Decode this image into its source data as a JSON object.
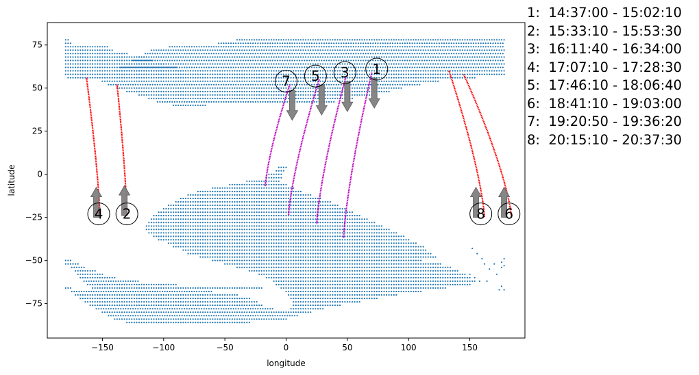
{
  "chart_data": {
    "type": "scatter",
    "title": "",
    "xlabel": "longitude",
    "ylabel": "latitude",
    "xlim": [
      -195,
      195
    ],
    "ylim": [
      -95,
      88
    ],
    "xticks": [
      -150,
      -100,
      -50,
      0,
      50,
      100,
      150
    ],
    "yticks": [
      -75,
      -50,
      -25,
      0,
      25,
      50,
      75
    ],
    "grid": false,
    "colors": {
      "coverage": "#1f77b4",
      "descending_track": "#ff0000",
      "ascending_track": "#bf00bf",
      "arrow": "#808080"
    },
    "coverage_grid_spacing_deg": 2,
    "coverage_regions": [
      {
        "name": "north",
        "bands": [
          [
            78,
            -180,
            -177
          ],
          [
            78,
            -40,
            178
          ],
          [
            76,
            -180,
            -175
          ],
          [
            76,
            -55,
            178
          ],
          [
            74,
            -180,
            -145
          ],
          [
            74,
            -95,
            178
          ],
          [
            72,
            -180,
            -142
          ],
          [
            72,
            -110,
            178
          ],
          [
            70,
            -180,
            -130
          ],
          [
            70,
            -115,
            178
          ],
          [
            68,
            -180,
            -115
          ],
          [
            68,
            -120,
            178
          ],
          [
            66,
            -180,
            -110
          ],
          [
            66,
            -125,
            178
          ],
          [
            64,
            -180,
            -100
          ],
          [
            64,
            -130,
            178
          ],
          [
            62,
            -180,
            -90
          ],
          [
            62,
            -135,
            178
          ],
          [
            60,
            -180,
            -85
          ],
          [
            60,
            -140,
            178
          ],
          [
            58,
            -180,
            178
          ],
          [
            56,
            -178,
            155
          ],
          [
            54,
            -150,
            125
          ],
          [
            52,
            -145,
            110
          ],
          [
            50,
            -138,
            95
          ],
          [
            48,
            -130,
            85
          ],
          [
            46,
            -120,
            70
          ],
          [
            44,
            -112,
            55
          ],
          [
            42,
            -105,
            40
          ],
          [
            40,
            -92,
            -65
          ]
        ]
      },
      {
        "name": "south",
        "bands": [
          [
            4,
            -6,
            0
          ],
          [
            2,
            -8,
            -2
          ],
          [
            0,
            -14,
            -4
          ],
          [
            -2,
            -16,
            -4
          ],
          [
            -4,
            -32,
            -6
          ],
          [
            -6,
            -46,
            0
          ],
          [
            -8,
            -60,
            6
          ],
          [
            -10,
            -72,
            12
          ],
          [
            -12,
            -80,
            20
          ],
          [
            -14,
            -86,
            28
          ],
          [
            -16,
            -90,
            36
          ],
          [
            -18,
            -96,
            42
          ],
          [
            -20,
            -100,
            48
          ],
          [
            -22,
            -104,
            54
          ],
          [
            -24,
            -108,
            60
          ],
          [
            -26,
            -110,
            66
          ],
          [
            -28,
            -112,
            72
          ],
          [
            -30,
            -114,
            78
          ],
          [
            -32,
            -114,
            84
          ],
          [
            -34,
            -112,
            90
          ],
          [
            -36,
            -108,
            96
          ],
          [
            -38,
            -104,
            100
          ],
          [
            -40,
            -96,
            106
          ],
          [
            -42,
            -92,
            112
          ],
          [
            -44,
            -84,
            114
          ],
          [
            -46,
            -80,
            118
          ],
          [
            -48,
            -70,
            122
          ],
          [
            -50,
            -180,
            -175
          ],
          [
            -50,
            -60,
            110
          ],
          [
            -52,
            -180,
            -170
          ],
          [
            -52,
            -50,
            126
          ],
          [
            -54,
            -175,
            -165
          ],
          [
            -54,
            -40,
            135
          ],
          [
            -56,
            -172,
            -155
          ],
          [
            -56,
            -30,
            140
          ],
          [
            -58,
            -170,
            -150
          ],
          [
            -58,
            -22,
            145
          ],
          [
            -60,
            -168,
            -140
          ],
          [
            -60,
            -16,
            150
          ],
          [
            -62,
            -165,
            -120
          ],
          [
            -62,
            -10,
            155
          ],
          [
            -64,
            -162,
            -90
          ],
          [
            -64,
            -8,
            150
          ],
          [
            -66,
            -180,
            -175
          ],
          [
            -66,
            -158,
            -20
          ],
          [
            -66,
            -4,
            130
          ],
          [
            -68,
            -175,
            -60
          ],
          [
            -68,
            0,
            110
          ],
          [
            -70,
            -172,
            -40
          ],
          [
            -70,
            2,
            90
          ],
          [
            -72,
            -168,
            -30
          ],
          [
            -72,
            4,
            75
          ],
          [
            -74,
            -164,
            -24
          ],
          [
            -74,
            6,
            60
          ],
          [
            -76,
            -160,
            -20
          ],
          [
            -76,
            6,
            45
          ],
          [
            -78,
            -155,
            -10
          ],
          [
            -78,
            4,
            30
          ],
          [
            -80,
            -150,
            0
          ],
          [
            -80,
            2,
            20
          ],
          [
            -82,
            -145,
            10
          ],
          [
            -84,
            -140,
            0
          ],
          [
            -86,
            -130,
            -30
          ]
        ]
      },
      {
        "name": "southeast-islands",
        "points": [
          [
            152,
            -43
          ],
          [
            156,
            -46
          ],
          [
            160,
            -49
          ],
          [
            162,
            -52
          ],
          [
            166,
            -55
          ],
          [
            170,
            -52
          ],
          [
            172,
            -58
          ],
          [
            176,
            -51
          ],
          [
            178,
            -53
          ],
          [
            178,
            -49
          ],
          [
            176,
            -65
          ],
          [
            178,
            -67
          ],
          [
            174,
            -67
          ],
          [
            176,
            -54
          ],
          [
            164,
            -62
          ],
          [
            158,
            -62
          ],
          [
            154,
            -60
          ],
          [
            150,
            -58
          ],
          [
            146,
            -58
          ]
        ]
      }
    ],
    "series": [
      {
        "label": "1",
        "direction": "ascending",
        "start": [
          70,
          59
        ],
        "end": [
          47,
          -37
        ],
        "arrow_x": 72
      },
      {
        "label": "2",
        "direction": "descending",
        "start": [
          -138,
          52
        ],
        "end": [
          -130,
          -24
        ],
        "arrow_x": -132
      },
      {
        "label": "3",
        "direction": "ascending",
        "start": [
          49,
          57
        ],
        "end": [
          25,
          -29
        ],
        "arrow_x": 50
      },
      {
        "label": "4",
        "direction": "descending",
        "start": [
          -163,
          56
        ],
        "end": [
          -152,
          -25
        ],
        "arrow_x": -155
      },
      {
        "label": "5",
        "direction": "ascending",
        "start": [
          27,
          55
        ],
        "end": [
          2,
          -24
        ],
        "arrow_x": 29
      },
      {
        "label": "6",
        "direction": "descending",
        "start": [
          145,
          58
        ],
        "end": [
          184,
          -25
        ],
        "arrow_x": 178
      },
      {
        "label": "7",
        "direction": "ascending",
        "start": [
          3,
          52
        ],
        "end": [
          -17,
          -7
        ],
        "arrow_x": 5
      },
      {
        "label": "8",
        "direction": "descending",
        "start": [
          133,
          60
        ],
        "end": [
          162,
          -25
        ],
        "arrow_x": 155
      }
    ],
    "markers": [
      {
        "label": "1",
        "lon": 74,
        "lat": 61
      },
      {
        "label": "2",
        "lon": -130,
        "lat": -23
      },
      {
        "label": "3",
        "lon": 48,
        "lat": 59
      },
      {
        "label": "4",
        "lon": -153,
        "lat": -23
      },
      {
        "label": "5",
        "lon": 24,
        "lat": 57
      },
      {
        "label": "6",
        "lon": 182,
        "lat": -23
      },
      {
        "label": "7",
        "lon": 0,
        "lat": 54
      },
      {
        "label": "8",
        "lon": 159,
        "lat": -23
      }
    ],
    "legend": [
      {
        "id": "1",
        "range": "14:37:00 - 15:02:10"
      },
      {
        "id": "2",
        "range": "15:33:10 - 15:53:30"
      },
      {
        "id": "3",
        "range": "16:11:40 - 16:34:00"
      },
      {
        "id": "4",
        "range": "17:07:10 - 17:28:30"
      },
      {
        "id": "5",
        "range": "17:46:10 - 18:06:40"
      },
      {
        "id": "6",
        "range": "18:41:10 - 19:03:00"
      },
      {
        "id": "7",
        "range": "19:20:50 - 19:36:20"
      },
      {
        "id": "8",
        "range": "20:15:10 - 20:37:30"
      }
    ],
    "legend_placement": "outside-right"
  }
}
